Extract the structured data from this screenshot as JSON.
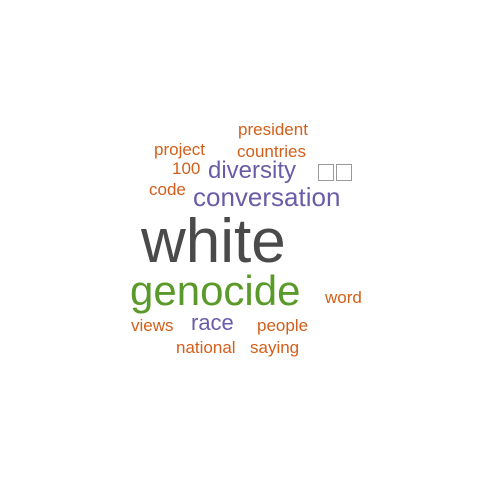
{
  "word_cloud": {
    "words": [
      {
        "text": "white",
        "color": "#4a4a4a"
      },
      {
        "text": "genocide",
        "color": "#5a9a2a"
      },
      {
        "text": "conversation",
        "color": "#6b5ca8"
      },
      {
        "text": "diversity",
        "color": "#6b5ca8"
      },
      {
        "text": "race",
        "color": "#6b5ca8"
      },
      {
        "text": "president",
        "color": "#d35f1a"
      },
      {
        "text": "project",
        "color": "#d35f1a"
      },
      {
        "text": "countries",
        "color": "#d35f1a"
      },
      {
        "text": "100",
        "color": "#d35f1a"
      },
      {
        "text": "code",
        "color": "#d35f1a"
      },
      {
        "text": "word",
        "color": "#d35f1a"
      },
      {
        "text": "views",
        "color": "#d35f1a"
      },
      {
        "text": "people",
        "color": "#d35f1a"
      },
      {
        "text": "national",
        "color": "#d35f1a"
      },
      {
        "text": "saying",
        "color": "#d35f1a"
      }
    ],
    "missing_glyph_token": {
      "glyph_count": 2,
      "color": "#9a9a9a"
    }
  }
}
